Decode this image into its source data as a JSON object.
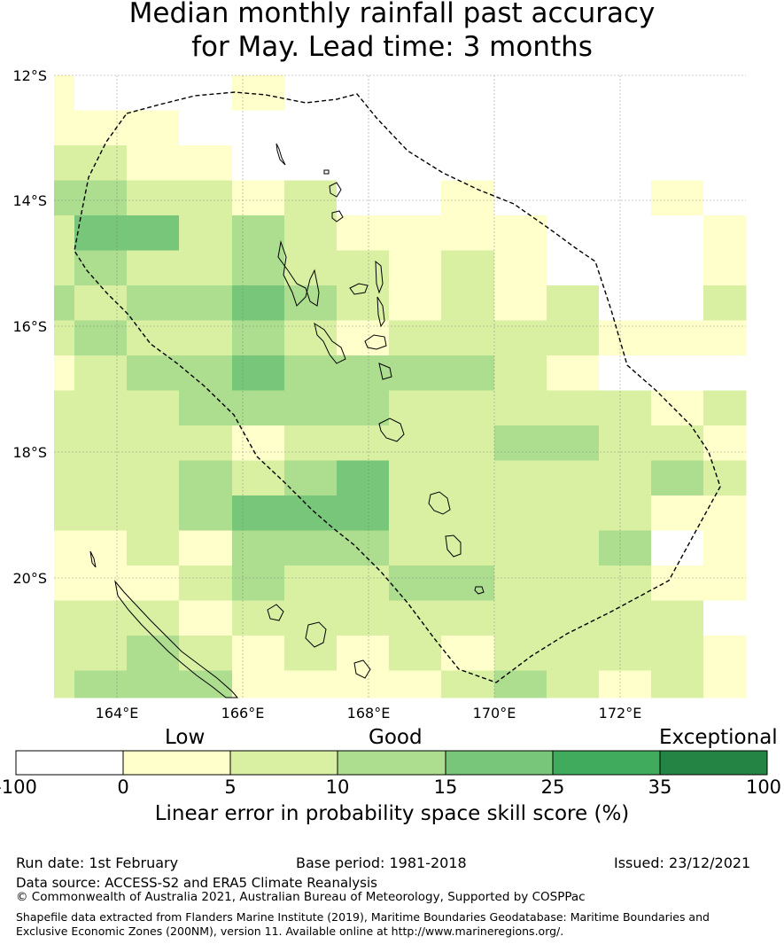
{
  "title": {
    "line1": "Median monthly rainfall past accuracy",
    "line2": "for May. Lead time: 3 months"
  },
  "map": {
    "lat_labels": [
      "12°S",
      "14°S",
      "16°S",
      "18°S",
      "20°S"
    ],
    "lon_labels": [
      "164°E",
      "166°E",
      "168°E",
      "170°E",
      "172°E"
    ],
    "lon_range": [
      163.0,
      174.0
    ],
    "lat_range": [
      -21.9,
      -12.0
    ]
  },
  "colorbar": {
    "categories": [
      "Low",
      "Good",
      "Exceptional"
    ],
    "ticks": [
      "-100",
      "0",
      "5",
      "10",
      "15",
      "25",
      "35",
      "100"
    ],
    "colors": [
      "#ffffff",
      "#ffffcc",
      "#d9f0a3",
      "#addd8e",
      "#78c679",
      "#41ab5d",
      "#238443"
    ],
    "label": "Linear error in probability space skill score (%)"
  },
  "footer": {
    "run_date": "Run date: 1st February",
    "base_period": "Base period: 1981-2018",
    "issued": "Issued: 23/12/2021",
    "data_source": "Data source: ACCESS-S2 and ERA5 Climate Reanalysis",
    "copyright": "© Commonwealth of Australia 2021, Australian Bureau of Meteorology, Supported by COSPPac",
    "shapefile": "Shapefile data extracted from Flanders Marine Institute (2019), Maritime Boundaries Geodatabase: Maritime Boundaries and Exclusive Economic Zones (200NM), version 11. Available online at http://www.marineregions.org/."
  }
}
